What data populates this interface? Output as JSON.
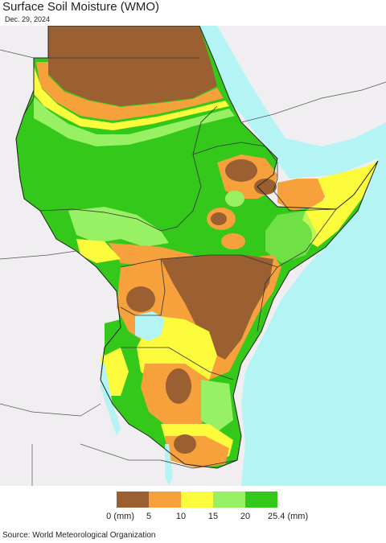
{
  "title": "Surface Soil Moisture (WMO)",
  "date": "Dec. 29, 2024",
  "source": "Source: World Meteorological Organization",
  "legend": {
    "unit_label": "(mm)",
    "ticks": [
      "0 (mm)",
      "5",
      "10",
      "15",
      "20",
      "25.4 (mm)"
    ],
    "colors": [
      "#9a6032",
      "#f7a13c",
      "#fcfc3c",
      "#98f064",
      "#34c81a"
    ]
  },
  "colors": {
    "ocean": "#b4f4f4",
    "land_outside": "#f0eef0",
    "border": "#333333"
  }
}
